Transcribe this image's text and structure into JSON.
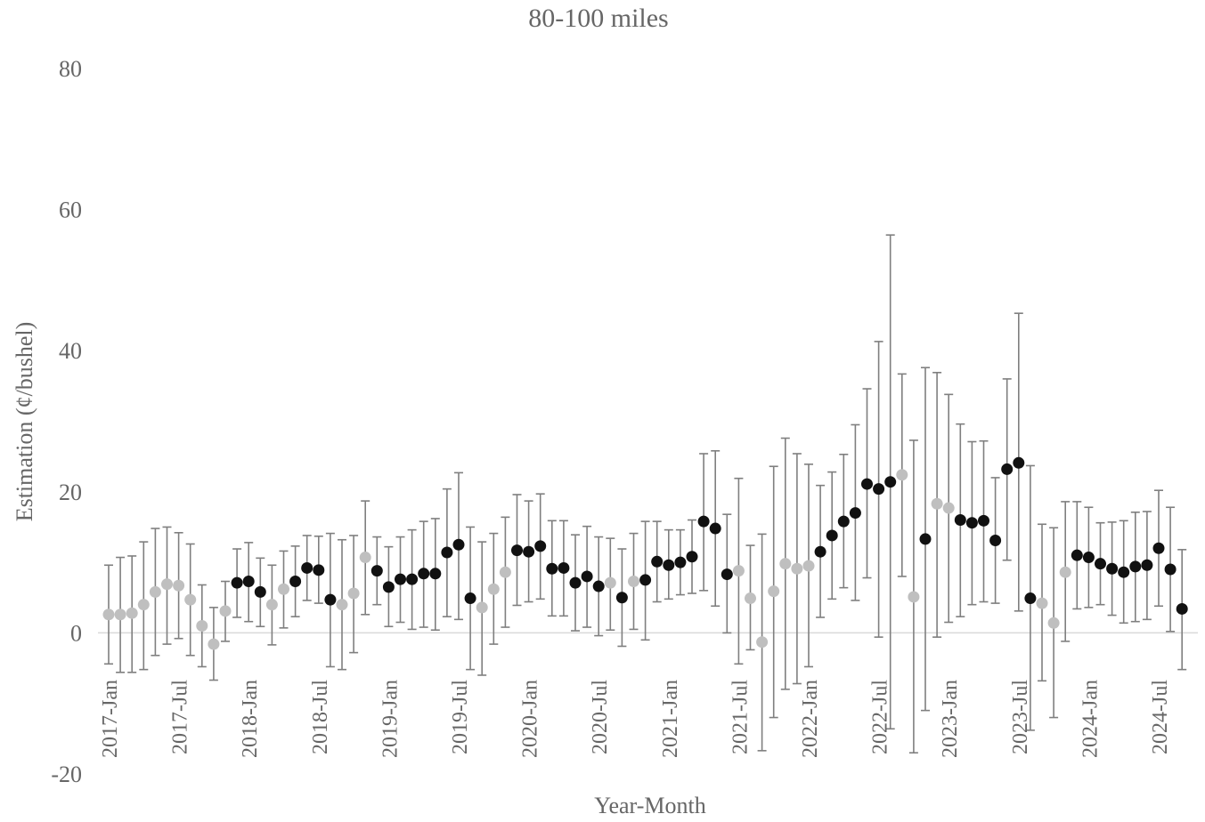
{
  "chart_data": {
    "type": "scatter",
    "title": "80-100 miles",
    "xlabel": "Year-Month",
    "ylabel": "Estimation (¢/bushel)",
    "ylim": [
      -20,
      80
    ],
    "yticks": [
      -20,
      0,
      20,
      40,
      60,
      80
    ],
    "xtick_labels": [
      "2017-Jan",
      "2017-Jul",
      "2018-Jan",
      "2018-Jul",
      "2019-Jan",
      "2019-Jul",
      "2020-Jan",
      "2020-Jul",
      "2021-Jan",
      "2021-Jul",
      "2022-Jan",
      "2022-Jul",
      "2023-Jan",
      "2023-Jul",
      "2024-Jan",
      "2024-Jul"
    ],
    "grid": false,
    "legend": "none",
    "colors": {
      "significant": "#111111",
      "not_significant": "#bfbfbf",
      "error_bar": "#7f7f7f",
      "zero_line": "#d9d9d9"
    },
    "point_encoding": {
      "s": "significant",
      "n": "not significant"
    },
    "x": [
      "2017-Jan",
      "2017-Feb",
      "2017-Mar",
      "2017-Apr",
      "2017-May",
      "2017-Jun",
      "2017-Jul",
      "2017-Aug",
      "2017-Sep",
      "2017-Oct",
      "2017-Nov",
      "2017-Dec",
      "2018-Jan",
      "2018-Feb",
      "2018-Mar",
      "2018-Apr",
      "2018-May",
      "2018-Jun",
      "2018-Jul",
      "2018-Aug",
      "2018-Sep",
      "2018-Oct",
      "2018-Nov",
      "2018-Dec",
      "2019-Jan",
      "2019-Feb",
      "2019-Mar",
      "2019-Apr",
      "2019-May",
      "2019-Jun",
      "2019-Jul",
      "2019-Aug",
      "2019-Sep",
      "2019-Oct",
      "2019-Nov",
      "2019-Dec",
      "2020-Jan",
      "2020-Feb",
      "2020-Mar",
      "2020-Apr",
      "2020-May",
      "2020-Jun",
      "2020-Jul",
      "2020-Aug",
      "2020-Sep",
      "2020-Oct",
      "2020-Nov",
      "2020-Dec",
      "2021-Jan",
      "2021-Feb",
      "2021-Mar",
      "2021-Apr",
      "2021-May",
      "2021-Jun",
      "2021-Jul",
      "2021-Aug",
      "2021-Sep",
      "2021-Oct",
      "2021-Nov",
      "2021-Dec",
      "2022-Jan",
      "2022-Feb",
      "2022-Mar",
      "2022-Apr",
      "2022-May",
      "2022-Jun",
      "2022-Jul",
      "2022-Aug",
      "2022-Sep",
      "2022-Oct",
      "2022-Nov",
      "2022-Dec",
      "2023-Jan",
      "2023-Feb",
      "2023-Mar",
      "2023-Apr",
      "2023-May",
      "2023-Jun",
      "2023-Jul",
      "2023-Aug",
      "2023-Sep",
      "2023-Oct",
      "2023-Nov",
      "2023-Dec",
      "2024-Jan",
      "2024-Feb",
      "2024-Mar",
      "2024-Apr",
      "2024-May",
      "2024-Jun",
      "2024-Jul",
      "2024-Aug",
      "2024-Sep"
    ],
    "y": [
      2.6,
      2.6,
      2.8,
      4.0,
      5.8,
      6.9,
      6.7,
      4.7,
      1.0,
      -1.6,
      3.1,
      7.1,
      7.3,
      5.8,
      4.0,
      6.2,
      7.3,
      9.2,
      8.9,
      4.7,
      4.0,
      5.6,
      10.7,
      8.8,
      6.5,
      7.6,
      7.6,
      8.4,
      8.4,
      11.4,
      12.5,
      4.9,
      3.6,
      6.2,
      8.6,
      11.7,
      11.5,
      12.3,
      9.1,
      9.2,
      7.1,
      8.0,
      6.6,
      7.1,
      5.0,
      7.3,
      7.5,
      10.1,
      9.6,
      10.0,
      10.8,
      15.8,
      14.8,
      8.3,
      8.8,
      4.9,
      -1.3,
      5.9,
      9.8,
      9.1,
      9.5,
      11.5,
      13.8,
      15.8,
      17.0,
      21.1,
      20.4,
      21.4,
      22.4,
      5.1,
      13.3,
      18.3,
      17.7,
      16.0,
      15.6,
      15.9,
      13.1,
      23.2,
      24.1,
      4.9,
      4.2,
      1.4,
      8.6,
      11.0,
      10.7,
      9.8,
      9.1,
      8.6,
      9.4,
      9.6,
      12.0,
      9.0,
      3.4
    ],
    "y_lower": [
      -4.4,
      -5.6,
      -5.6,
      -5.2,
      -3.2,
      -1.6,
      -0.8,
      -3.2,
      -4.8,
      -6.7,
      -1.2,
      2.2,
      1.6,
      0.9,
      -1.7,
      0.7,
      2.3,
      4.6,
      4.2,
      -4.8,
      -5.2,
      -2.8,
      2.6,
      4.0,
      0.9,
      1.5,
      0.5,
      0.8,
      0.4,
      2.3,
      1.9,
      -5.2,
      -6.0,
      -1.6,
      0.8,
      3.9,
      4.4,
      4.8,
      2.4,
      2.4,
      0.3,
      0.8,
      -0.4,
      0.4,
      -1.9,
      0.5,
      -1.0,
      4.4,
      4.8,
      5.4,
      5.6,
      6.0,
      3.8,
      0.0,
      -4.4,
      -2.4,
      -16.7,
      -12.0,
      -8.0,
      -7.2,
      -4.8,
      2.2,
      4.8,
      6.4,
      4.6,
      7.8,
      -0.6,
      -13.6,
      8.0,
      -17.0,
      -11.0,
      -0.6,
      1.5,
      2.3,
      4.0,
      4.4,
      4.2,
      10.3,
      3.1,
      -13.8,
      -6.8,
      -12.0,
      -1.2,
      3.4,
      3.6,
      4.0,
      2.5,
      1.4,
      1.6,
      1.9,
      3.8,
      0.2,
      -5.2
    ],
    "y_upper": [
      9.6,
      10.7,
      10.9,
      12.9,
      14.8,
      15.0,
      14.2,
      12.6,
      6.8,
      3.6,
      7.3,
      11.9,
      12.8,
      10.6,
      9.6,
      11.6,
      12.3,
      13.8,
      13.7,
      14.1,
      13.2,
      13.8,
      18.7,
      13.6,
      12.2,
      13.6,
      14.6,
      15.8,
      16.2,
      20.4,
      22.7,
      15.0,
      12.9,
      14.1,
      16.4,
      19.6,
      18.7,
      19.7,
      15.9,
      15.9,
      13.9,
      15.1,
      13.6,
      13.4,
      11.9,
      14.1,
      15.8,
      15.8,
      14.6,
      14.6,
      16.0,
      25.4,
      25.8,
      16.8,
      21.9,
      12.4,
      14.0,
      23.6,
      27.6,
      25.4,
      23.9,
      20.9,
      22.8,
      25.3,
      29.5,
      34.6,
      41.3,
      56.4,
      36.7,
      27.3,
      37.6,
      36.9,
      33.8,
      29.6,
      27.1,
      27.2,
      22.0,
      36.0,
      45.3,
      23.7,
      15.4,
      14.9,
      18.6,
      18.6,
      17.8,
      15.6,
      15.7,
      15.9,
      17.1,
      17.2,
      20.2,
      17.8,
      11.8
    ],
    "sig": "nnnnnnnnnnnsssnnssssnnnsssssssssnnnssssssssnsnssssssssnnnnnnnsssssssnnsnnsssssssnnnssssssssss"
  }
}
